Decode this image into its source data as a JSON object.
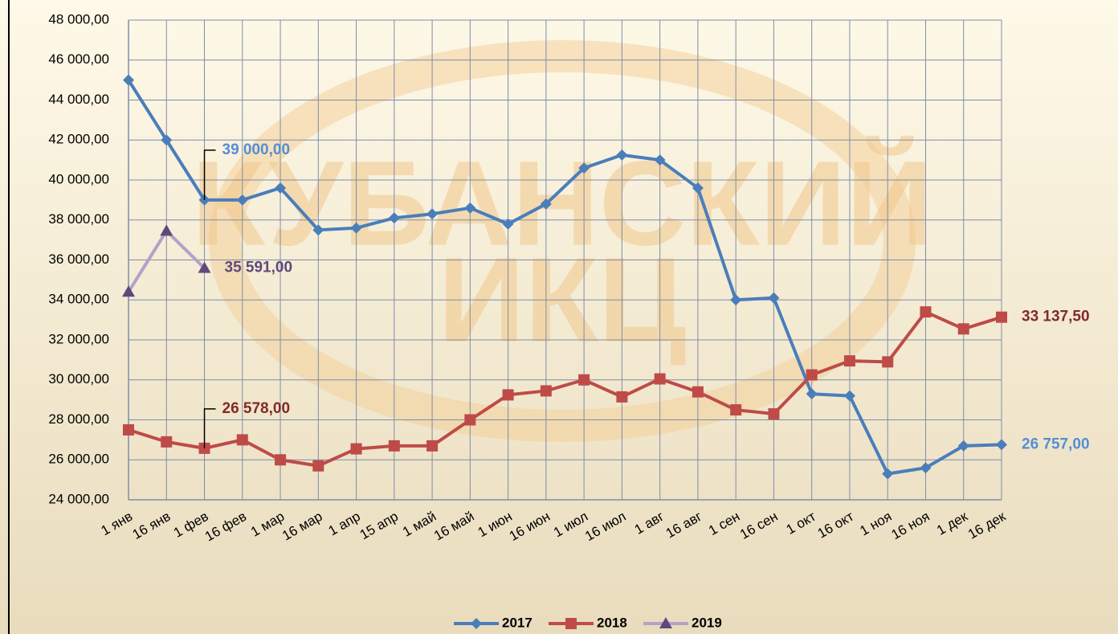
{
  "chart_data": {
    "type": "line",
    "categories": [
      "1 янв",
      "16 янв",
      "1 фев",
      "16 фев",
      "1 мар",
      "16 мар",
      "1 апр",
      "15 апр",
      "1 май",
      "16 май",
      "1 июн",
      "16 июн",
      "1 июл",
      "16 июл",
      "1 авг",
      "16 авг",
      "1 сен",
      "16 сен",
      "1 окт",
      "16 окт",
      "1 ноя",
      "16 ноя",
      "1 дек",
      "16 дек"
    ],
    "series": [
      {
        "name": "2017",
        "color": "#4a7ebb",
        "marker": "diamond",
        "label_color": "#558ed5",
        "values": [
          45000,
          42000,
          39000,
          39000,
          39600,
          37500,
          37600,
          38100,
          38300,
          38600,
          37800,
          38800,
          40600,
          41250,
          41000,
          39600,
          34000,
          34100,
          29300,
          29200,
          25300,
          25600,
          26700,
          26757
        ],
        "value_labels": [
          null,
          null,
          "39 000,00",
          null,
          null,
          null,
          null,
          null,
          null,
          null,
          null,
          null,
          null,
          null,
          null,
          null,
          null,
          null,
          null,
          null,
          null,
          null,
          null,
          "26 757,00"
        ]
      },
      {
        "name": "2018",
        "color": "#be4b48",
        "marker": "square",
        "label_color": "#7f2b2a",
        "values": [
          27500,
          26900,
          26578,
          27000,
          26000,
          25700,
          26550,
          26700,
          26700,
          28000,
          29250,
          29450,
          30000,
          29150,
          30050,
          29400,
          28500,
          28300,
          30250,
          30950,
          30900,
          33400,
          32550,
          33137.5
        ],
        "value_labels": [
          null,
          null,
          "26 578,00",
          null,
          null,
          null,
          null,
          null,
          null,
          null,
          null,
          null,
          null,
          null,
          null,
          null,
          null,
          null,
          null,
          null,
          null,
          null,
          null,
          "33 137,50"
        ]
      },
      {
        "name": "2019",
        "color": "#b3a2c7",
        "marker": "triangle",
        "marker_color": "#5f497a",
        "label_color": "#5f497a",
        "values": [
          34400,
          37450,
          35591,
          null,
          null,
          null,
          null,
          null,
          null,
          null,
          null,
          null,
          null,
          null,
          null,
          null,
          null,
          null,
          null,
          null,
          null,
          null,
          null,
          null
        ],
        "value_labels": [
          null,
          null,
          "35 591,00",
          null,
          null,
          null,
          null,
          null,
          null,
          null,
          null,
          null,
          null,
          null,
          null,
          null,
          null,
          null,
          null,
          null,
          null,
          null,
          null,
          null
        ]
      }
    ],
    "ylim": [
      24000,
      48000
    ],
    "yticks": [
      {
        "value": 24000,
        "label": "24 000,00"
      },
      {
        "value": 26000,
        "label": "26 000,00"
      },
      {
        "value": 28000,
        "label": "28 000,00"
      },
      {
        "value": 30000,
        "label": "30 000,00"
      },
      {
        "value": 32000,
        "label": "32 000,00"
      },
      {
        "value": 34000,
        "label": "34 000,00"
      },
      {
        "value": 36000,
        "label": "36 000,00"
      },
      {
        "value": 38000,
        "label": "38 000,00"
      },
      {
        "value": 40000,
        "label": "40 000,00"
      },
      {
        "value": 42000,
        "label": "42 000,00"
      },
      {
        "value": 44000,
        "label": "44 000,00"
      },
      {
        "value": 46000,
        "label": "46 000,00"
      },
      {
        "value": 48000,
        "label": "48 000,00"
      }
    ],
    "grid": true,
    "legend": "bottom",
    "watermark": [
      "КУБАНСКИЙ",
      "ИКЦ"
    ]
  }
}
